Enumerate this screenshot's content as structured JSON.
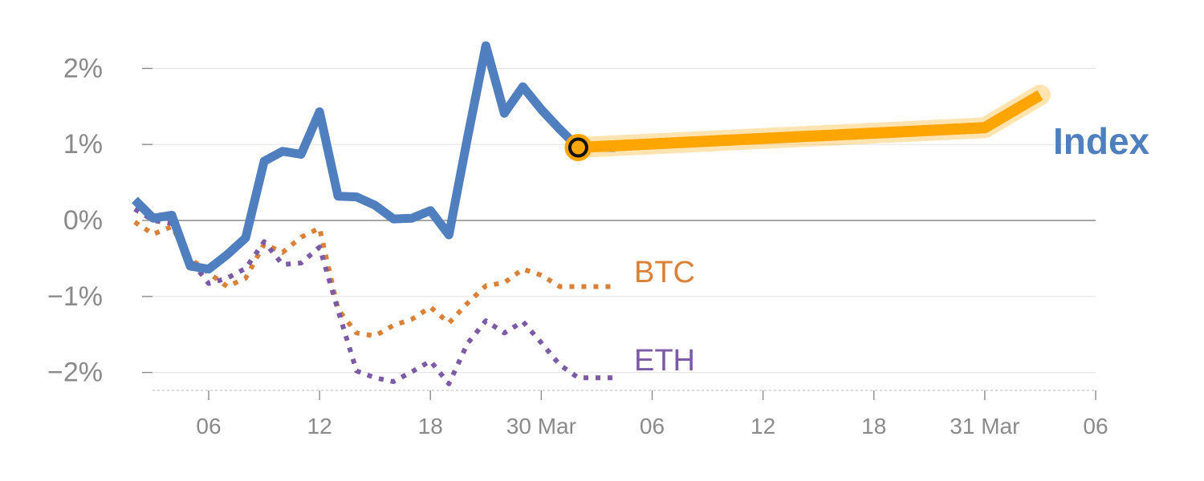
{
  "chart_data": {
    "type": "line",
    "title": "",
    "xlabel": "",
    "ylabel": "",
    "ylim": [
      -2.25,
      2.4
    ],
    "grid": true,
    "y_ticks": [
      {
        "value": 2,
        "label": "2%"
      },
      {
        "value": 1,
        "label": "1%"
      },
      {
        "value": 0,
        "label": "0%"
      },
      {
        "value": -1,
        "label": "−1%"
      },
      {
        "value": -2,
        "label": "−2%"
      }
    ],
    "x_ticks": [
      {
        "x": 5,
        "label": "06"
      },
      {
        "x": 11,
        "label": "12"
      },
      {
        "x": 17,
        "label": "18"
      },
      {
        "x": 23,
        "label": "30 Mar"
      },
      {
        "x": 29,
        "label": "06"
      },
      {
        "x": 35,
        "label": "12"
      },
      {
        "x": 41,
        "label": "18"
      },
      {
        "x": 47,
        "label": "31 Mar"
      },
      {
        "x": 53,
        "label": "06"
      }
    ],
    "series": [
      {
        "name": "Index",
        "color": "#4f7fbf",
        "style": "solid",
        "x": [
          1,
          2,
          3,
          4,
          5,
          6,
          7,
          8,
          9,
          10,
          11,
          12,
          13,
          14,
          15,
          16,
          17,
          18,
          19,
          20,
          21,
          22,
          23,
          24,
          25,
          26,
          27
        ],
        "values": [
          0.27,
          0.03,
          0.07,
          -0.6,
          -0.64,
          -0.45,
          -0.23,
          0.78,
          0.91,
          0.87,
          1.43,
          0.32,
          0.31,
          0.2,
          0.02,
          0.03,
          0.13,
          -0.19,
          1.08,
          2.3,
          1.41,
          1.76,
          1.46,
          1.2,
          0.96,
          0.96,
          0.96
        ]
      },
      {
        "name": "BTC",
        "color": "#d98138",
        "style": "dotted",
        "x": [
          1,
          2,
          3,
          4,
          5,
          6,
          7,
          8,
          9,
          10,
          11,
          12,
          13,
          14,
          15,
          16,
          17,
          18,
          19,
          20,
          21,
          22,
          23,
          24,
          25,
          26,
          27
        ],
        "values": [
          -0.02,
          -0.18,
          -0.08,
          -0.5,
          -0.69,
          -0.87,
          -0.76,
          -0.31,
          -0.42,
          -0.22,
          -0.1,
          -1.17,
          -1.48,
          -1.52,
          -1.38,
          -1.3,
          -1.14,
          -1.35,
          -1.09,
          -0.86,
          -0.82,
          -0.64,
          -0.72,
          -0.87,
          -0.87,
          -0.87,
          -0.87
        ]
      },
      {
        "name": "ETH",
        "color": "#7b5aa6",
        "style": "dotted",
        "x": [
          1,
          2,
          3,
          4,
          5,
          6,
          7,
          8,
          9,
          10,
          11,
          12,
          13,
          14,
          15,
          16,
          17,
          18,
          19,
          20,
          21,
          22,
          23,
          24,
          25,
          26,
          27
        ],
        "values": [
          0.15,
          0.0,
          -0.04,
          -0.52,
          -0.83,
          -0.76,
          -0.63,
          -0.28,
          -0.58,
          -0.56,
          -0.35,
          -1.18,
          -1.98,
          -2.07,
          -2.12,
          -1.99,
          -1.85,
          -2.15,
          -1.62,
          -1.32,
          -1.48,
          -1.33,
          -1.61,
          -1.9,
          -2.07,
          -2.07,
          -2.07
        ]
      }
    ],
    "forecast": {
      "series": "Index",
      "color": "#ffa500",
      "x": [
        25,
        47,
        50
      ],
      "values": [
        0.96,
        1.22,
        1.65
      ],
      "marker_x": 25,
      "marker_value": 0.96
    }
  }
}
